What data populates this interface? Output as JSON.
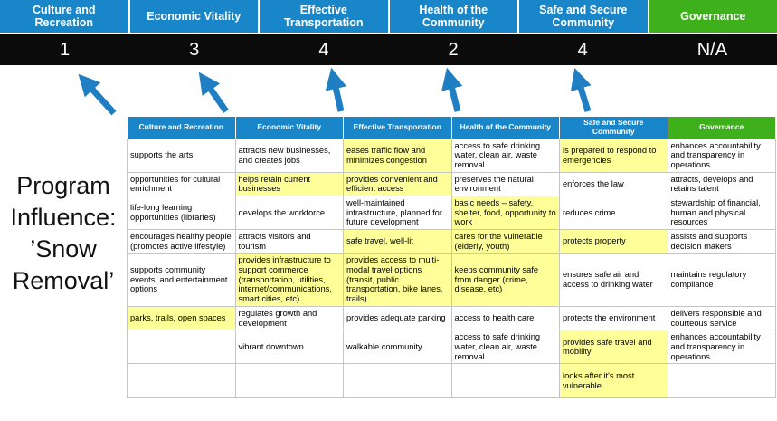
{
  "program_label": {
    "text": "Program Influence: ’Snow Removal’",
    "lines": [
      "Program",
      "Influence:",
      "’Snow",
      "Removal’"
    ]
  },
  "colors": {
    "header_blue": "#1886C8",
    "header_green": "#3EB01C",
    "highlight_yellow": "#FFFF99",
    "score_bar_black": "#0B0B0B",
    "arrow_blue": "#1F7FC2",
    "cell_border_gray": "#C6C6C6"
  },
  "scoreboard": {
    "columns": [
      {
        "label": "Culture and Recreation",
        "score": "1",
        "theme": "blue"
      },
      {
        "label": "Economic Vitality",
        "score": "3",
        "theme": "blue"
      },
      {
        "label": "Effective Transportation",
        "score": "4",
        "theme": "blue"
      },
      {
        "label": "Health of the Community",
        "score": "2",
        "theme": "blue"
      },
      {
        "label": "Safe and Secure Community",
        "score": "4",
        "theme": "blue"
      },
      {
        "label": "Governance",
        "score": "N/A",
        "theme": "green"
      }
    ]
  },
  "matrix": {
    "headers": [
      {
        "label": "Culture and Recreation",
        "theme": "blue"
      },
      {
        "label": "Economic Vitality",
        "theme": "blue"
      },
      {
        "label": "Effective Transportation",
        "theme": "blue"
      },
      {
        "label": "Health of the Community",
        "theme": "blue"
      },
      {
        "label": "Safe and Secure Community",
        "theme": "blue"
      },
      {
        "label": "Governance",
        "theme": "green"
      }
    ],
    "rows": [
      {
        "cells": [
          {
            "text": "supports the arts",
            "highlight": false
          },
          {
            "text": "attracts new businesses, and creates jobs",
            "highlight": false
          },
          {
            "text": "eases traffic flow and minimizes congestion",
            "highlight": true
          },
          {
            "text": "access to safe drinking water, clean air, waste removal",
            "highlight": false
          },
          {
            "text": "is prepared to respond to emergencies",
            "highlight": true
          },
          {
            "text": "enhances accountability and transparency in operations",
            "highlight": false
          }
        ]
      },
      {
        "cells": [
          {
            "text": "opportunities for cultural enrichment",
            "highlight": false
          },
          {
            "text": "helps retain current businesses",
            "highlight": true
          },
          {
            "text": "provides convenient and efficient access",
            "highlight": true
          },
          {
            "text": "preserves the natural environment",
            "highlight": false
          },
          {
            "text": "enforces the law",
            "highlight": false
          },
          {
            "text": "attracts, develops and retains talent",
            "highlight": false
          }
        ]
      },
      {
        "cells": [
          {
            "text": "life-long learning opportunities (libraries)",
            "highlight": false
          },
          {
            "text": "develops the workforce",
            "highlight": false
          },
          {
            "text": "well-maintained infrastructure, planned for future development",
            "highlight": false
          },
          {
            "text": "basic needs – safety, shelter, food, opportunity to work",
            "highlight": true
          },
          {
            "text": "reduces crime",
            "highlight": false
          },
          {
            "text": "stewardship of financial, human and physical resources",
            "highlight": false
          }
        ]
      },
      {
        "cells": [
          {
            "text": "encourages healthy people (promotes active lifestyle)",
            "highlight": false
          },
          {
            "text": "attracts visitors and tourism",
            "highlight": false
          },
          {
            "text": "safe travel, well-lit",
            "highlight": true
          },
          {
            "text": "cares for the vulnerable (elderly, youth)",
            "highlight": true
          },
          {
            "text": "protects property",
            "highlight": true
          },
          {
            "text": "assists and supports decision makers",
            "highlight": false
          }
        ]
      },
      {
        "cells": [
          {
            "text": "supports community events, and entertainment options",
            "highlight": false
          },
          {
            "text": "provides infrastructure to support commerce (transportation, utilities, internet/communications, smart cities, etc)",
            "highlight": true
          },
          {
            "text": "provides access to multi-modal travel options (transit, public transportation, bike lanes, trails)",
            "highlight": true
          },
          {
            "text": "keeps community safe from danger (crime, disease, etc)",
            "highlight": true
          },
          {
            "text": "ensures safe air and access to drinking water",
            "highlight": false
          },
          {
            "text": "maintains regulatory compliance",
            "highlight": false
          }
        ]
      },
      {
        "cells": [
          {
            "text": "parks, trails, open spaces",
            "highlight": true
          },
          {
            "text": "regulates growth and development",
            "highlight": false
          },
          {
            "text": "provides adequate parking",
            "highlight": false
          },
          {
            "text": "access to health care",
            "highlight": false
          },
          {
            "text": "protects the environment",
            "highlight": false
          },
          {
            "text": "delivers responsible and courteous service",
            "highlight": false
          }
        ]
      },
      {
        "cells": [
          {
            "text": "",
            "highlight": false
          },
          {
            "text": "vibrant downtown",
            "highlight": false
          },
          {
            "text": "walkable community",
            "highlight": false
          },
          {
            "text": "access to safe drinking water, clean air, waste removal",
            "highlight": false
          },
          {
            "text": "provides safe travel and mobility",
            "highlight": true
          },
          {
            "text": "enhances accountability and transparency in operations",
            "highlight": false
          }
        ]
      },
      {
        "cells": [
          {
            "text": "",
            "highlight": false
          },
          {
            "text": "",
            "highlight": false
          },
          {
            "text": "",
            "highlight": false
          },
          {
            "text": "",
            "highlight": false
          },
          {
            "text": "looks after it's most vulnerable",
            "highlight": true
          },
          {
            "text": "",
            "highlight": false
          }
        ]
      }
    ]
  }
}
